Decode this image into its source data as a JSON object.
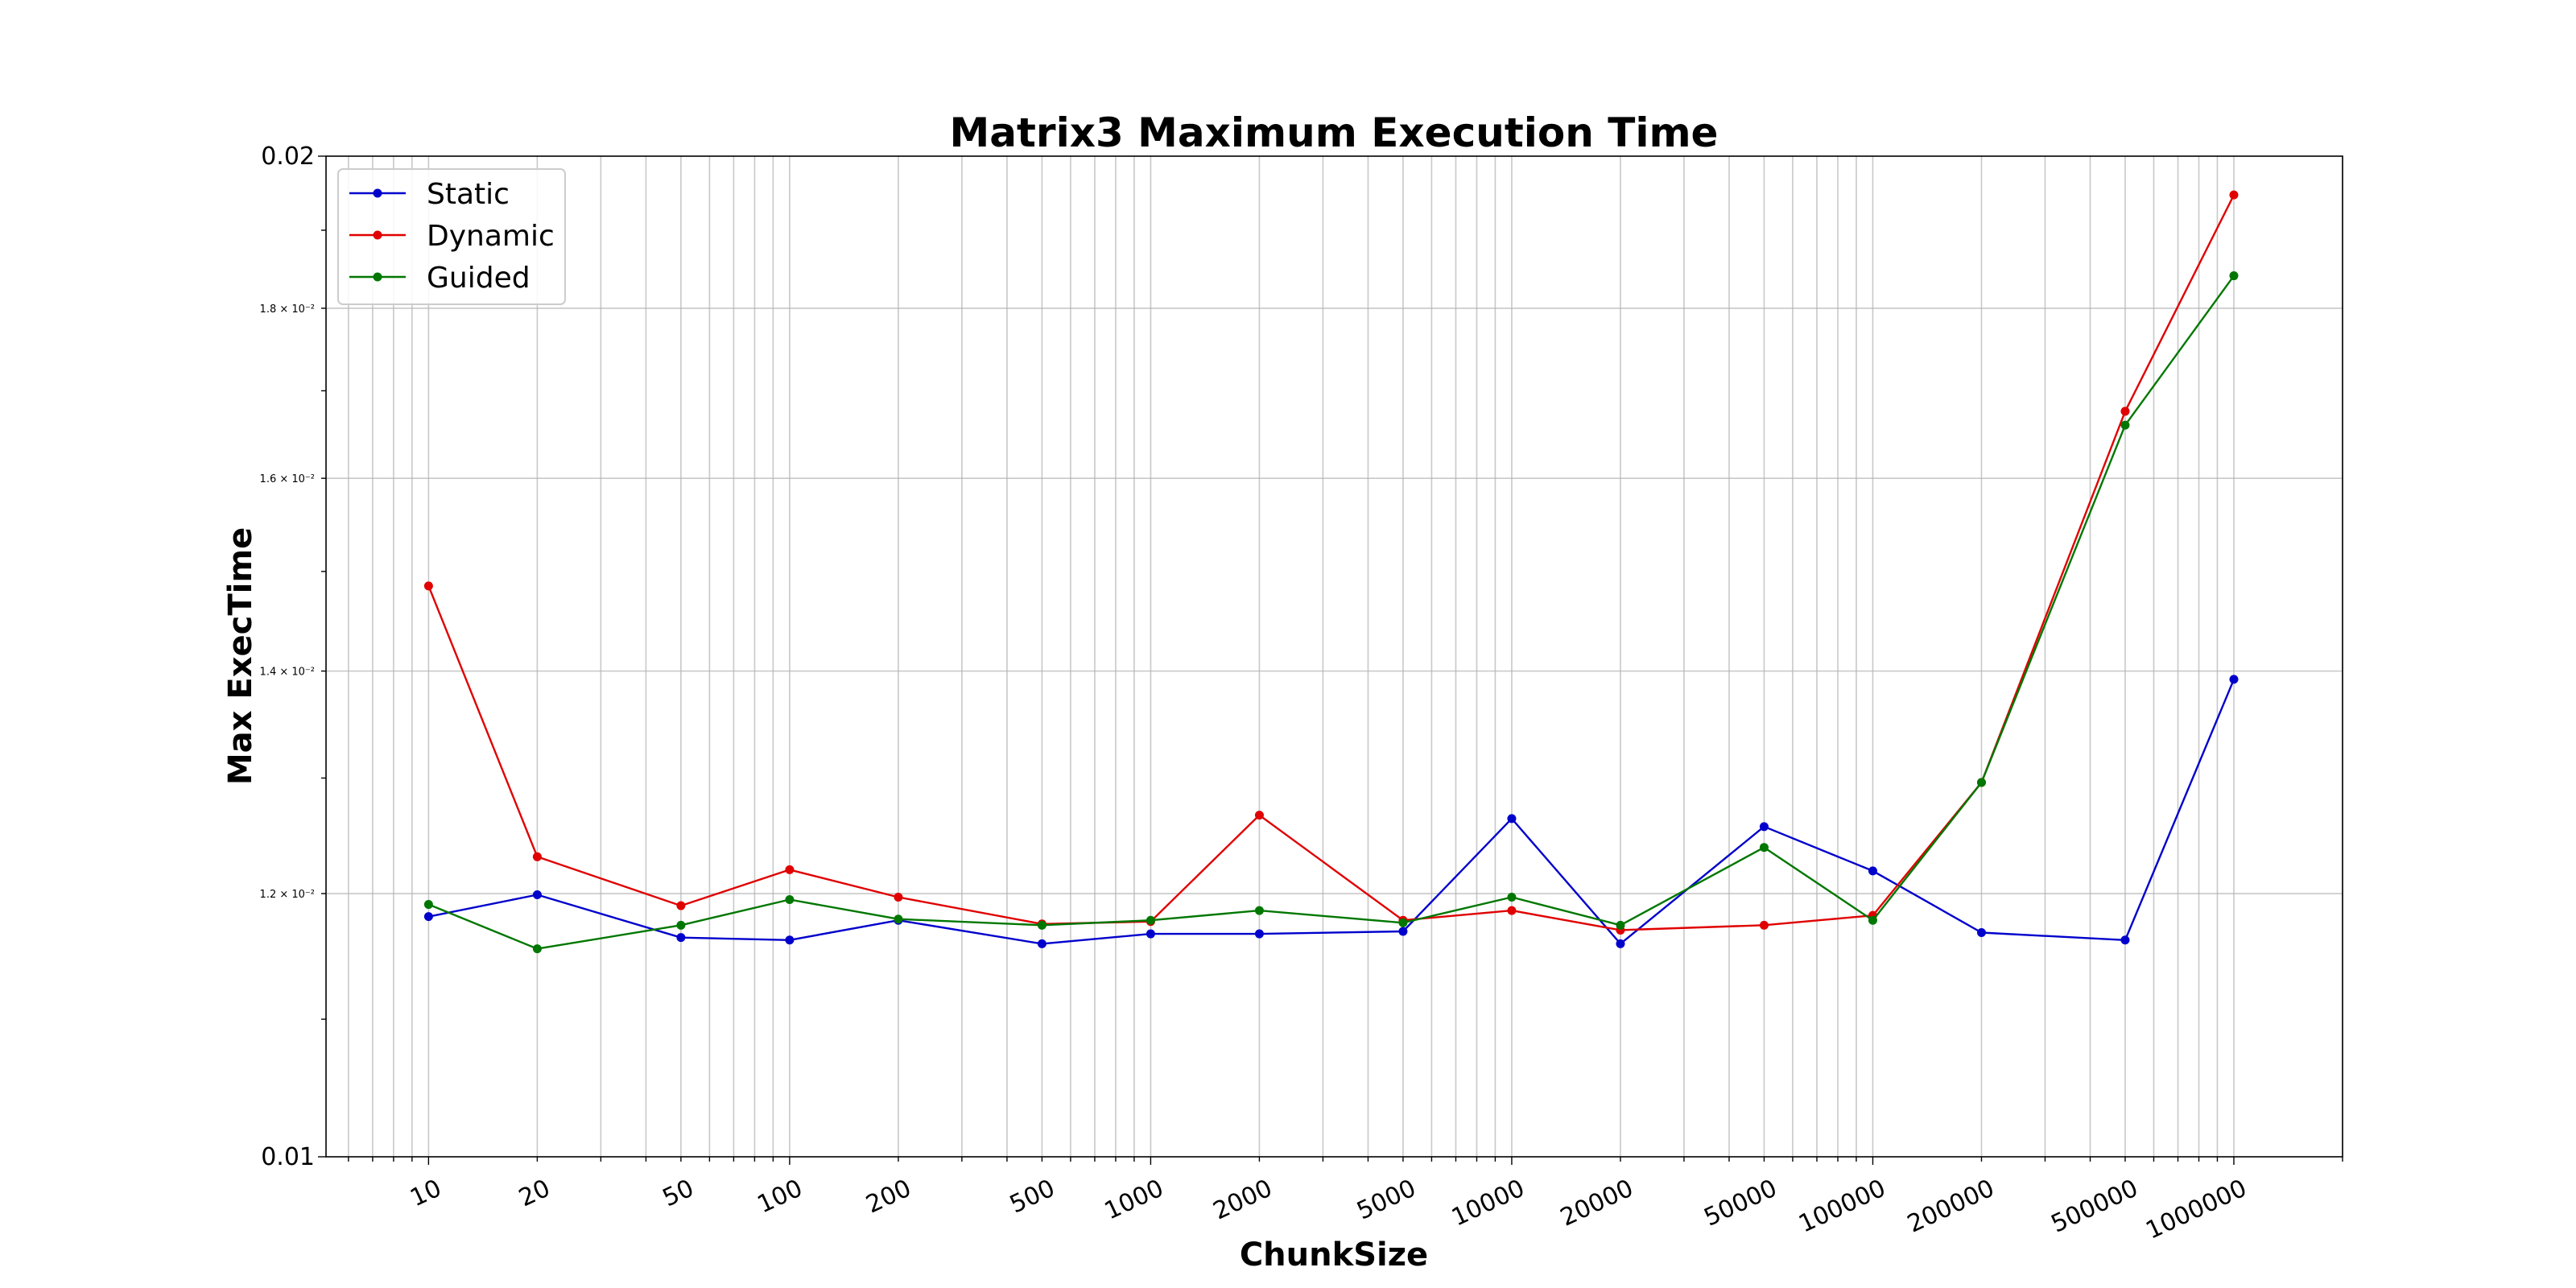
{
  "chart_data": {
    "type": "line",
    "title": "Matrix3 Maximum Execution Time",
    "xlabel": "ChunkSize",
    "ylabel": "Max ExecTime",
    "x_scale": "log",
    "y_scale": "log",
    "categories": [
      "10",
      "20",
      "50",
      "100",
      "200",
      "500",
      "1000",
      "2000",
      "5000",
      "10000",
      "20000",
      "50000",
      "100000",
      "200000",
      "500000",
      "1000000"
    ],
    "x": [
      10,
      20,
      50,
      100,
      200,
      500,
      1000,
      2000,
      5000,
      10000,
      20000,
      50000,
      100000,
      200000,
      500000,
      1000000
    ],
    "xlim": [
      5.2,
      2000000
    ],
    "ylim": [
      0.01,
      0.02
    ],
    "y_major_ticks": [
      {
        "value": 0.01,
        "label": "0.01"
      },
      {
        "value": 0.02,
        "label": "0.02"
      }
    ],
    "y_minor_ticks": [
      {
        "value": 0.012,
        "label": "1.2 × 10⁻²"
      },
      {
        "value": 0.014,
        "label": "1.4 × 10⁻²"
      },
      {
        "value": 0.016,
        "label": "1.6 × 10⁻²"
      },
      {
        "value": 0.018,
        "label": "1.8 × 10⁻²"
      }
    ],
    "grid": true,
    "legend_position": "top-left",
    "series": [
      {
        "name": "Static",
        "color": "#0000cc",
        "values": [
          0.01181,
          0.01199,
          0.01164,
          0.01162,
          0.01178,
          0.01159,
          0.01167,
          0.01167,
          0.01169,
          0.01264,
          0.01159,
          0.01257,
          0.01219,
          0.01168,
          0.01162,
          0.01392
        ]
      },
      {
        "name": "Dynamic",
        "color": "#e00000",
        "values": [
          0.01485,
          0.01231,
          0.0119,
          0.0122,
          0.01197,
          0.01175,
          0.01177,
          0.01267,
          0.01178,
          0.01186,
          0.0117,
          0.01174,
          0.01182,
          0.01296,
          0.01676,
          0.01947
        ]
      },
      {
        "name": "Guided",
        "color": "#007700",
        "values": [
          0.01191,
          0.01155,
          0.01174,
          0.01195,
          0.01179,
          0.01174,
          0.01178,
          0.01186,
          0.01176,
          0.01197,
          0.01174,
          0.01239,
          0.01178,
          0.01296,
          0.0166,
          0.01841
        ]
      }
    ]
  }
}
